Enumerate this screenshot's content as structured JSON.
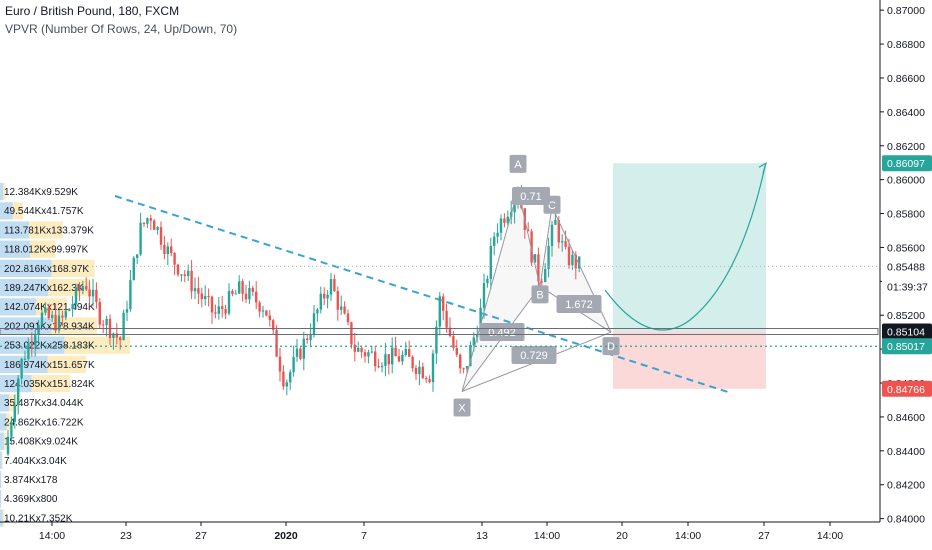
{
  "header": {
    "symbol_line": "Euro / British Pound, 180, FXCM",
    "indicator_line": "VPVR (Number Of Rows, 24, Up/Down, 70)"
  },
  "chart_data": {
    "type": "candlestick",
    "yaxis": {
      "ticks": [
        "0.87000",
        "0.86800",
        "0.86600",
        "0.86400",
        "0.86200",
        "0.86000",
        "0.85800",
        "0.85600",
        "0.85400",
        "0.85200",
        "0.85000",
        "0.84800",
        "0.84600",
        "0.84400",
        "0.84200",
        "0.84000"
      ],
      "range": [
        0.8398,
        0.8706
      ]
    },
    "xaxis": {
      "ticks": [
        {
          "label": "14:00",
          "bold": false
        },
        {
          "label": "23",
          "bold": false
        },
        {
          "label": "27",
          "bold": false
        },
        {
          "label": "2020",
          "bold": true
        },
        {
          "label": "7",
          "bold": false
        },
        {
          "label": "13",
          "bold": false
        },
        {
          "label": "14:00",
          "bold": false
        },
        {
          "label": "20",
          "bold": false
        },
        {
          "label": "14:00",
          "bold": false
        },
        {
          "label": "27",
          "bold": false
        },
        {
          "label": "14:00",
          "bold": false
        }
      ]
    },
    "price_labels": [
      {
        "text": "0.86097",
        "price": 0.86097,
        "color": "#26a69a",
        "line": false
      },
      {
        "text": "0.85488",
        "price": 0.85488,
        "color": "#ffffff",
        "line": true
      },
      {
        "text": "01:39:37",
        "price": 0.8537,
        "color": "#ffffff",
        "line": false
      },
      {
        "text": "0.85104",
        "price": 0.85104,
        "color": "#131722",
        "line": true
      },
      {
        "text": "0.85017",
        "price": 0.85017,
        "color": "#26a69a",
        "line": true
      },
      {
        "text": "0.84766",
        "price": 0.84766,
        "color": "#ef5350",
        "line": false
      }
    ],
    "volume_profile": [
      {
        "text": "12.384Kx9.529K",
        "total": 21.9
      },
      {
        "text": "49.544Kx41.757K",
        "total": 91.3
      },
      {
        "text": "113.781Kx133.379K",
        "total": 247.2
      },
      {
        "text": "118.012Kx99.997K",
        "total": 218.0
      },
      {
        "text": "202.816Kx168.97K",
        "total": 371.8
      },
      {
        "text": "189.247Kx162.3K",
        "total": 351.5
      },
      {
        "text": "142.074Kx121.494K",
        "total": 263.6
      },
      {
        "text": "202.091Kx178.934K",
        "total": 381.0
      },
      {
        "text": "253.022Kx258.183K",
        "total": 511.2
      },
      {
        "text": "186.974Kx151.657K",
        "total": 338.6
      },
      {
        "text": "124.035Kx151.824K",
        "total": 275.9
      },
      {
        "text": "35.487Kx34.044K",
        "total": 69.5
      },
      {
        "text": "24.862Kx16.722K",
        "total": 41.6
      },
      {
        "text": "15.408Kx9.024K",
        "total": 24.4
      },
      {
        "text": "7.404Kx3.04K",
        "total": 10.4
      },
      {
        "text": "3.874Kx178",
        "total": 4.1
      },
      {
        "text": "4.369Kx800",
        "total": 5.2
      },
      {
        "text": "10.21Kx7.352K",
        "total": 17.6
      }
    ],
    "harmonic_pattern": {
      "points": [
        {
          "name": "X",
          "price": 0.8475
        },
        {
          "name": "A",
          "price": 0.8594
        },
        {
          "name": "B",
          "price": 0.8537
        },
        {
          "name": "C",
          "price": 0.8584
        },
        {
          "name": "D",
          "price": 0.851
        }
      ],
      "ratios": [
        "0.71",
        "1.672",
        "0.492",
        "0.729"
      ]
    },
    "position": {
      "target": 0.86097,
      "entry": 0.85104,
      "stop": 0.84766
    },
    "colors": {
      "up": "#26a69a",
      "down": "#ef5350",
      "vp_up": "#4e9fd9",
      "vp_down": "#f9c948",
      "profit_zone": "#d4eeeb",
      "loss_zone": "#fbd9d8",
      "trendline": "#38a3d4",
      "pattern_label": "#a4a8b2"
    }
  }
}
